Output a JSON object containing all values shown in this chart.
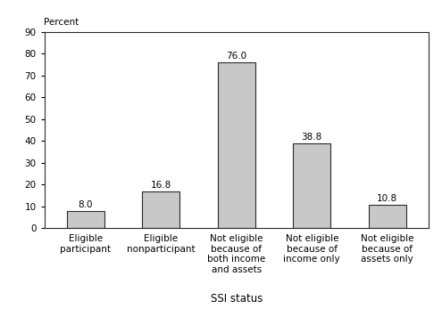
{
  "categories": [
    "Eligible\nparticipant",
    "Eligible\nnonparticipant",
    "Not eligible\nbecause of\nboth income\nand assets",
    "Not eligible\nbecause of\nincome only",
    "Not eligible\nbecause of\nassets only"
  ],
  "values": [
    8.0,
    16.8,
    76.0,
    38.8,
    10.8
  ],
  "bar_color": "#c8c8c8",
  "bar_edgecolor": "#2b2b2b",
  "xlabel": "SSI status",
  "ylabel": "Percent",
  "ylim": [
    0,
    90
  ],
  "yticks": [
    0,
    10,
    20,
    30,
    40,
    50,
    60,
    70,
    80,
    90
  ],
  "bar_width": 0.5,
  "tick_label_fontsize": 7.5,
  "value_label_fontsize": 7.5,
  "xlabel_fontsize": 8.5,
  "ylabel_fontsize": 7.5,
  "background_color": "#ffffff"
}
